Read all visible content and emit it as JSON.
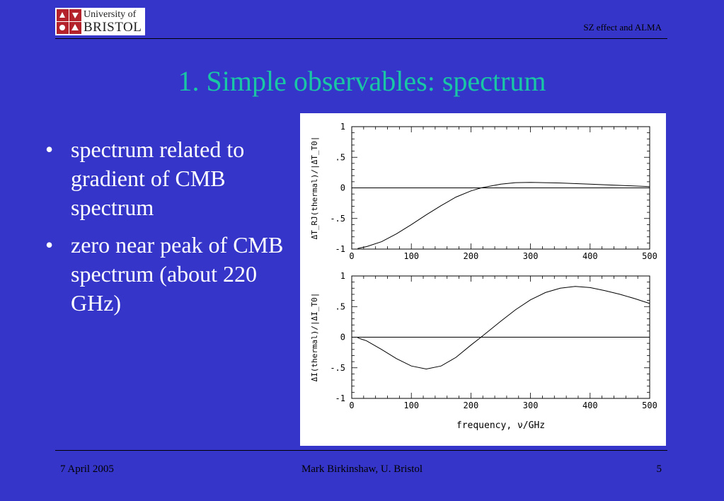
{
  "header": {
    "logo_line1": "University of",
    "logo_line2": "BRISTOL",
    "right_text": "SZ effect and ALMA"
  },
  "title": "1. Simple observables: spectrum",
  "bullets": [
    "spectrum related to gradient of CMB spectrum",
    "zero near peak of CMB spectrum (about 220 GHz)"
  ],
  "colors": {
    "background": "#3535c9",
    "title": "#19c7a5",
    "text": "#ffffff"
  },
  "chart_data": [
    {
      "type": "line",
      "title": "",
      "xlabel": "",
      "ylabel": "ΔT_RJ(thermal)/|ΔT_T0|",
      "xlim": [
        0,
        500
      ],
      "ylim": [
        -1,
        1
      ],
      "x_ticks": [
        "0",
        "100",
        "200",
        "300",
        "400",
        "500"
      ],
      "y_ticks": [
        "1",
        ".5",
        "0",
        "-.5",
        "-1"
      ],
      "grid": false,
      "series": [
        {
          "x": [
            10,
            25,
            50,
            75,
            100,
            125,
            150,
            175,
            200,
            217,
            250,
            275,
            300,
            350,
            400,
            450,
            500
          ],
          "values": [
            -0.99,
            -0.96,
            -0.88,
            -0.75,
            -0.6,
            -0.44,
            -0.29,
            -0.15,
            -0.05,
            0.0,
            0.06,
            0.085,
            0.09,
            0.08,
            0.06,
            0.04,
            0.02
          ]
        }
      ]
    },
    {
      "type": "line",
      "title": "",
      "xlabel": "frequency, ν/GHz",
      "ylabel": "ΔI(thermal)/|ΔI_T0|",
      "xlim": [
        0,
        500
      ],
      "ylim": [
        -1,
        1
      ],
      "x_ticks": [
        "0",
        "100",
        "200",
        "300",
        "400",
        "500"
      ],
      "y_ticks": [
        "1",
        ".5",
        "0",
        "-.5",
        "-1"
      ],
      "grid": false,
      "series": [
        {
          "x": [
            10,
            25,
            50,
            75,
            100,
            125,
            150,
            175,
            200,
            217,
            250,
            275,
            300,
            325,
            350,
            375,
            400,
            425,
            450,
            475,
            500
          ],
          "values": [
            -0.01,
            -0.06,
            -0.2,
            -0.35,
            -0.47,
            -0.52,
            -0.47,
            -0.33,
            -0.13,
            0.0,
            0.26,
            0.45,
            0.61,
            0.73,
            0.8,
            0.83,
            0.81,
            0.76,
            0.7,
            0.63,
            0.55
          ]
        }
      ]
    }
  ],
  "footer": {
    "left": "7 April 2005",
    "center": "Mark Birkinshaw, U. Bristol",
    "right": "5"
  }
}
